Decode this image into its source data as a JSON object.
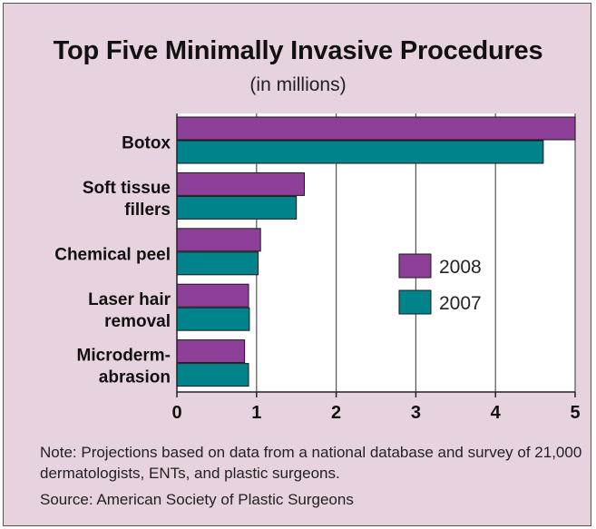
{
  "chart_data": {
    "type": "bar",
    "orientation": "horizontal",
    "title": "Top Five Minimally Invasive Procedures",
    "subtitle": "(in millions)",
    "categories": [
      [
        "Botox"
      ],
      [
        "Soft tissue",
        "fillers"
      ],
      [
        "Chemical peel"
      ],
      [
        "Laser hair",
        "removal"
      ],
      [
        "Microderm-",
        "abrasion"
      ]
    ],
    "series": [
      {
        "name": "2008",
        "color": "#8e3f98",
        "values": [
          5.0,
          1.6,
          1.05,
          0.9,
          0.85
        ]
      },
      {
        "name": "2007",
        "color": "#00838a",
        "values": [
          4.6,
          1.5,
          1.02,
          0.91,
          0.9
        ]
      }
    ],
    "xlim": [
      0,
      5
    ],
    "xticks": [
      "0",
      "1",
      "2",
      "3",
      "4",
      "5"
    ],
    "grid": true,
    "legend_position": "right"
  },
  "note": "Note: Projections based on data from a national database and survey of 21,000 dermatologists, ENTs, and plastic surgeons.",
  "source": "Source: American Society of Plastic Surgeons",
  "colors": {
    "background": "#e7d2df",
    "plot_background": "#ffffff",
    "gridline": "#555555"
  }
}
